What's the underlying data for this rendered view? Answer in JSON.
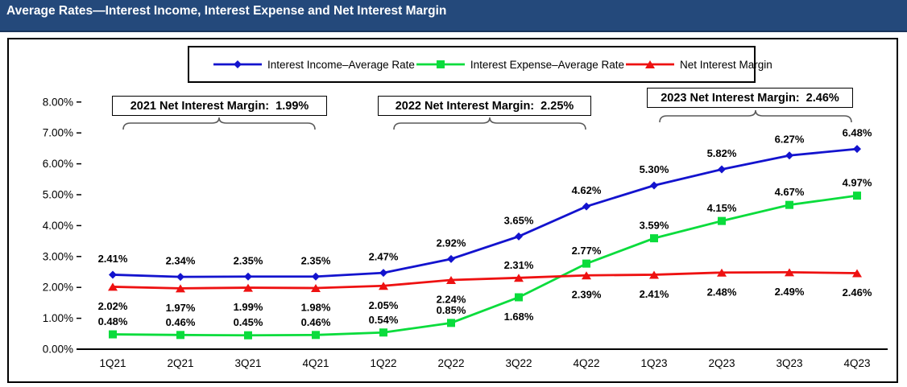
{
  "title_bar": {
    "title": "Average Rates—Interest Income, Interest Expense and Net Interest Margin",
    "bg_color": "#24497B",
    "text_color": "#FFFFFF"
  },
  "legend": {
    "items": [
      {
        "label": "Interest Income–Average Rate",
        "marker": "diamond",
        "color": "#1313CE"
      },
      {
        "label": "Interest Expense–Average Rate",
        "marker": "square",
        "color": "#0ADC3C"
      },
      {
        "label": "Net Interest Margin",
        "marker": "triangle",
        "color": "#EE1111"
      }
    ]
  },
  "annotations": [
    {
      "year": "2021",
      "value": "1.99%",
      "text": "2021 Net Interest Margin:  1.99%"
    },
    {
      "year": "2022",
      "value": "2.25%",
      "text": "2022 Net Interest Margin:  2.25%"
    },
    {
      "year": "2023",
      "value": "2.46%",
      "text": "2023 Net Interest Margin:  2.46%"
    }
  ],
  "chart_data": {
    "type": "line",
    "title": "Average Rates—Interest Income, Interest Expense and Net Interest Margin",
    "categories": [
      "1Q21",
      "2Q21",
      "3Q21",
      "4Q21",
      "1Q22",
      "2Q22",
      "3Q22",
      "4Q22",
      "1Q23",
      "2Q23",
      "3Q23",
      "4Q23"
    ],
    "series": [
      {
        "name": "Interest Income–Average Rate",
        "marker": "diamond",
        "color": "#1313CE",
        "values": [
          2.41,
          2.34,
          2.35,
          2.35,
          2.47,
          2.92,
          3.65,
          4.62,
          5.3,
          5.82,
          6.27,
          6.48
        ]
      },
      {
        "name": "Interest Expense–Average Rate",
        "marker": "square",
        "color": "#0ADC3C",
        "values": [
          0.48,
          0.46,
          0.45,
          0.46,
          0.54,
          0.85,
          1.68,
          2.77,
          3.59,
          4.15,
          4.67,
          4.97
        ]
      },
      {
        "name": "Net Interest Margin",
        "marker": "triangle",
        "color": "#EE1111",
        "values": [
          2.02,
          1.97,
          1.99,
          1.98,
          2.05,
          2.24,
          2.31,
          2.39,
          2.41,
          2.48,
          2.49,
          2.46
        ]
      }
    ],
    "xlabel": "",
    "ylabel": "",
    "ylim": [
      0,
      8
    ],
    "yticks": [
      "0.00%",
      "1.00%",
      "2.00%",
      "3.00%",
      "4.00%",
      "5.00%",
      "6.00%",
      "7.00%",
      "8.00%"
    ],
    "grid": false,
    "legend_position": "top",
    "data_labels": true
  }
}
